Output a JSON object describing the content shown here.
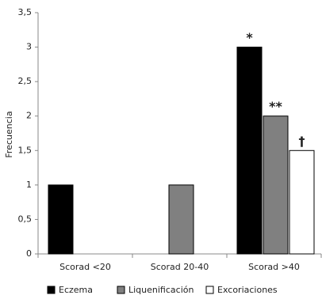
{
  "chart_data": {
    "type": "bar",
    "y_label": "Frecuencia",
    "categories": [
      "Scorad <20",
      "Scorad 20-40",
      "Scorad >40"
    ],
    "series": [
      {
        "name": "Eczema",
        "color": "#000000",
        "values": [
          1,
          0,
          3
        ],
        "annotations": [
          null,
          null,
          "*"
        ]
      },
      {
        "name": "Liquenificación",
        "color": "#808080",
        "values": [
          0,
          1,
          2
        ],
        "annotations": [
          null,
          null,
          "**"
        ]
      },
      {
        "name": "Excoriaciones",
        "color": "#ffffff",
        "values": [
          0,
          0,
          1.5
        ],
        "annotations": [
          null,
          null,
          "†"
        ]
      }
    ],
    "ylim": [
      0,
      3.5
    ],
    "yticks": [
      0,
      {
        "value": 0.5,
        "label": "0,5"
      },
      1,
      {
        "value": 1.5,
        "label": "1,5"
      },
      2,
      {
        "value": 2.5,
        "label": "2,5"
      },
      3,
      {
        "value": 3.5,
        "label": "3,5"
      }
    ],
    "grid": false,
    "legend": "bottom"
  }
}
